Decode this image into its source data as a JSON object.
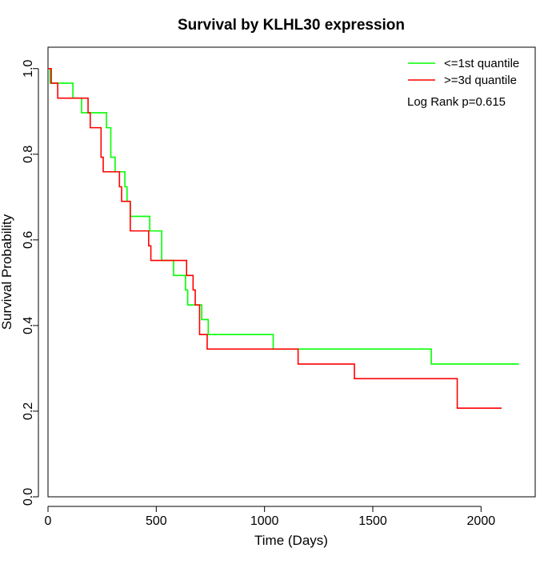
{
  "chart_data": {
    "type": "line",
    "subtype": "kaplan-meier step",
    "title": "Survival by KLHL30 expression",
    "xlabel": "Time (Days)",
    "ylabel": "Survival Probability",
    "xlim": [
      0,
      2250
    ],
    "ylim": [
      0,
      1.05
    ],
    "x_ticks": [
      0,
      500,
      1000,
      1500,
      2000
    ],
    "y_ticks": [
      0.0,
      0.2,
      0.4,
      0.6,
      0.8,
      1.0
    ],
    "x_tick_labels": [
      "0",
      "500",
      "1000",
      "1500",
      "2000"
    ],
    "y_tick_labels": [
      "0.0",
      "0.2",
      "0.4",
      "0.6",
      "0.8",
      "1.0"
    ],
    "grid": false,
    "legend_position": "top-right",
    "annotation": "Log Rank p=0.615",
    "series": [
      {
        "name": "<=1st quantile",
        "color": "#00ff00",
        "x": [
          0,
          10,
          115,
          155,
          270,
          290,
          310,
          355,
          365,
          380,
          470,
          525,
          580,
          635,
          645,
          710,
          740,
          1040,
          1770,
          2175
        ],
        "y": [
          1.0,
          0.966,
          0.931,
          0.897,
          0.862,
          0.793,
          0.759,
          0.724,
          0.69,
          0.655,
          0.621,
          0.552,
          0.517,
          0.483,
          0.448,
          0.414,
          0.379,
          0.345,
          0.31,
          0.31
        ]
      },
      {
        "name": ">=3d quantile",
        "color": "#ff0000",
        "x": [
          0,
          15,
          45,
          185,
          195,
          245,
          255,
          330,
          340,
          380,
          465,
          475,
          640,
          670,
          680,
          700,
          735,
          1155,
          1415,
          1890,
          2095
        ],
        "y": [
          1.0,
          0.966,
          0.931,
          0.897,
          0.862,
          0.793,
          0.759,
          0.724,
          0.69,
          0.621,
          0.586,
          0.552,
          0.517,
          0.483,
          0.448,
          0.379,
          0.345,
          0.31,
          0.276,
          0.207,
          0.207
        ]
      }
    ]
  }
}
